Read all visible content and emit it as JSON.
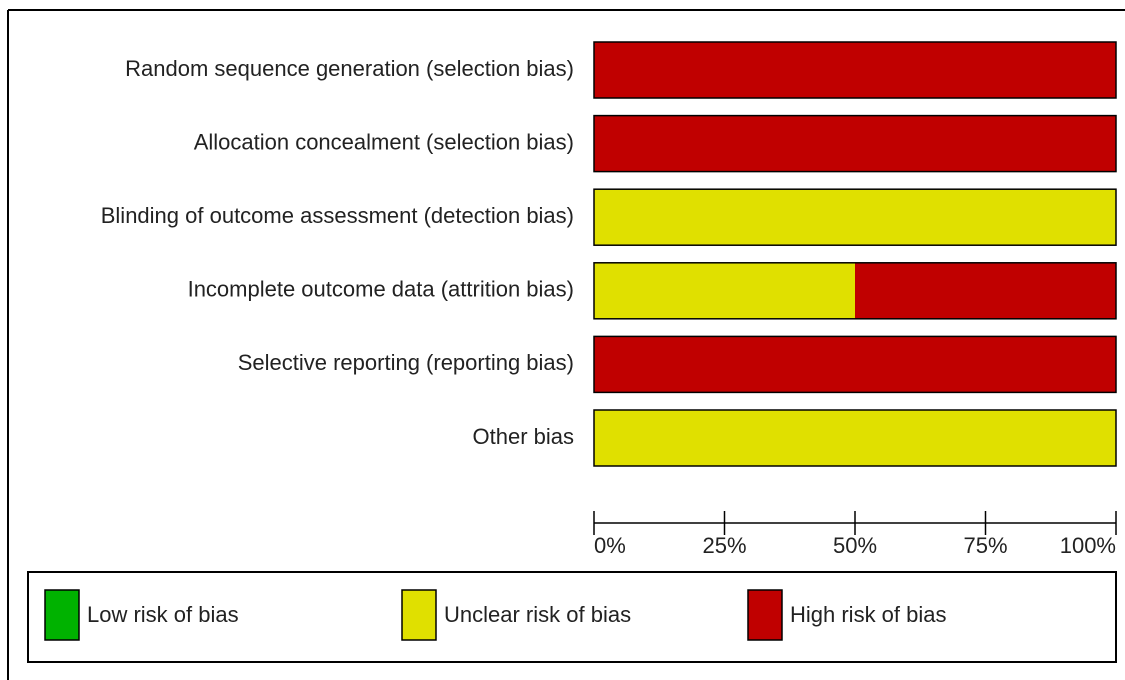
{
  "chart_data": {
    "type": "stacked_barh",
    "categories": [
      "Random sequence generation (selection bias)",
      "Allocation concealment (selection bias)",
      "Blinding of outcome assessment (detection bias)",
      "Incomplete outcome data (attrition bias)",
      "Selective reporting (reporting bias)",
      "Other bias"
    ],
    "series": [
      {
        "name": "Low risk of bias",
        "color": "#00b200",
        "values": [
          0,
          0,
          0,
          0,
          0,
          0
        ]
      },
      {
        "name": "Unclear risk of bias",
        "color": "#e0e000",
        "values": [
          0,
          0,
          100,
          50,
          0,
          100
        ]
      },
      {
        "name": "High risk of bias",
        "color": "#c00000",
        "values": [
          100,
          100,
          0,
          50,
          100,
          0
        ]
      }
    ],
    "xlim": [
      0,
      100
    ],
    "xticks": [
      {
        "value": 0,
        "label": "0%"
      },
      {
        "value": 25,
        "label": "25%"
      },
      {
        "value": 50,
        "label": "50%"
      },
      {
        "value": 75,
        "label": "75%"
      },
      {
        "value": 100,
        "label": "100%"
      }
    ],
    "legend": "bottom"
  }
}
